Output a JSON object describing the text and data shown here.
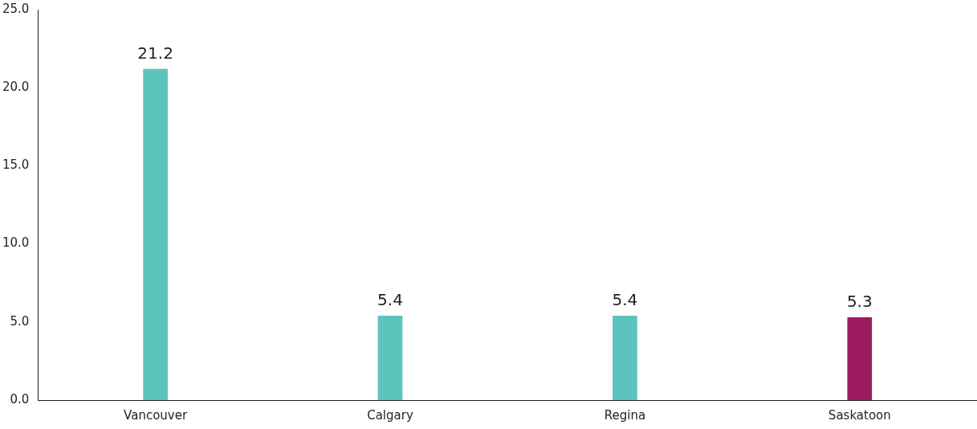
{
  "chart_data": {
    "type": "bar",
    "categories": [
      "Vancouver",
      "Calgary",
      "Regina",
      "Saskatoon"
    ],
    "values": [
      21.2,
      5.4,
      5.4,
      5.3
    ],
    "colors": [
      "#5bc5bd",
      "#5bc5bd",
      "#5bc5bd",
      "#9c1b5f"
    ],
    "ylim": [
      0,
      25
    ],
    "yticks": [
      {
        "value": 0,
        "label": "0.0"
      },
      {
        "value": 5,
        "label": "5.0"
      },
      {
        "value": 10,
        "label": "10.0"
      },
      {
        "value": 15,
        "label": "15.0"
      },
      {
        "value": 20,
        "label": "20.0"
      },
      {
        "value": 25,
        "label": "25.0"
      }
    ],
    "grid": false,
    "legend": false,
    "data_labels": true
  }
}
